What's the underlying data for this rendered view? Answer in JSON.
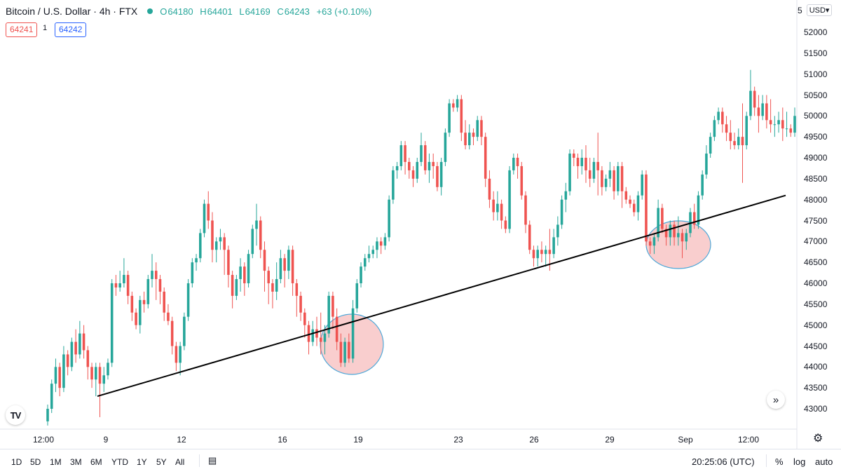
{
  "header": {
    "symbol": "Bitcoin / U.S. Dollar · 4h · FTX",
    "ohlc": {
      "o_label": "O",
      "o": "64180",
      "h_label": "H",
      "h": "64401",
      "l_label": "L",
      "l": "64169",
      "c_label": "C",
      "c": "64243",
      "change": "+63 (+0.10%)"
    },
    "sell_price": "64241",
    "qty": "1",
    "buy_price": "64242"
  },
  "price_scale": {
    "truncated_top": "5",
    "currency": "USD▾"
  },
  "colors": {
    "up": "#26a69a",
    "down": "#ef5350",
    "trendline": "#000000",
    "ellipse_fill": "#f8c9c9",
    "ellipse_stroke": "#4fa8d8",
    "sell_box": "#ef5350",
    "buy_box": "#2962ff"
  },
  "chart_data": {
    "type": "candlestick",
    "y_ticks": [
      43000,
      43500,
      44000,
      44500,
      45000,
      45500,
      46000,
      46500,
      47000,
      47500,
      48000,
      48500,
      49000,
      49500,
      50000,
      50500,
      51000,
      51500,
      52000
    ],
    "x_ticks": [
      "12:00",
      "9",
      "12",
      "16",
      "19",
      "23",
      "26",
      "29",
      "Sep",
      "12:00"
    ],
    "ylim": [
      42500,
      52600
    ],
    "candles": [
      [
        42700,
        43000,
        42600,
        43100
      ],
      [
        43000,
        43600,
        42900,
        43700
      ],
      [
        43600,
        44000,
        43400,
        44200
      ],
      [
        44000,
        43500,
        43300,
        44100
      ],
      [
        43500,
        44300,
        43400,
        44500
      ],
      [
        44300,
        44000,
        43800,
        44400
      ],
      [
        44000,
        44600,
        43900,
        44700
      ],
      [
        44600,
        44300,
        44100,
        44900
      ],
      [
        44300,
        44800,
        44200,
        45100
      ],
      [
        44800,
        44400,
        44200,
        45000
      ],
      [
        44400,
        44000,
        43700,
        44500
      ],
      [
        44000,
        43700,
        43500,
        44100
      ],
      [
        43700,
        44000,
        43300,
        44100
      ],
      [
        44000,
        43600,
        42800,
        44100
      ],
      [
        43600,
        43800,
        43400,
        44000
      ],
      [
        43800,
        44100,
        43700,
        44200
      ],
      [
        44100,
        46000,
        44000,
        46100
      ],
      [
        46000,
        45900,
        45700,
        46200
      ],
      [
        45900,
        46000,
        45800,
        46300
      ],
      [
        46000,
        46200,
        45900,
        46600
      ],
      [
        46200,
        45700,
        45500,
        46300
      ],
      [
        45700,
        45300,
        45100,
        45800
      ],
      [
        45300,
        45000,
        44900,
        45400
      ],
      [
        45000,
        45600,
        44800,
        45700
      ],
      [
        45600,
        45500,
        45300,
        45800
      ],
      [
        45500,
        46100,
        45400,
        46200
      ],
      [
        46100,
        46300,
        45900,
        46700
      ],
      [
        46300,
        46100,
        45600,
        46500
      ],
      [
        46100,
        45800,
        45500,
        46200
      ],
      [
        45800,
        45300,
        45100,
        45900
      ],
      [
        45300,
        45100,
        45000,
        45500
      ],
      [
        45100,
        44500,
        44300,
        45200
      ],
      [
        44500,
        44100,
        43900,
        44600
      ],
      [
        44100,
        44500,
        43800,
        44600
      ],
      [
        44500,
        45200,
        44400,
        45300
      ],
      [
        45200,
        46000,
        45100,
        46100
      ],
      [
        46000,
        46500,
        45900,
        46600
      ],
      [
        46500,
        46600,
        46300,
        46700
      ],
      [
        46600,
        47200,
        46500,
        47300
      ],
      [
        47200,
        47900,
        47100,
        48000
      ],
      [
        47900,
        47500,
        47300,
        48200
      ],
      [
        47500,
        46800,
        46500,
        47700
      ],
      [
        46800,
        47000,
        46500,
        47100
      ],
      [
        47000,
        47100,
        46800,
        47300
      ],
      [
        47100,
        46800,
        46200,
        47200
      ],
      [
        46800,
        46200,
        45900,
        46900
      ],
      [
        46200,
        45700,
        45400,
        46300
      ],
      [
        45700,
        46100,
        45600,
        46200
      ],
      [
        46100,
        46400,
        45800,
        46600
      ],
      [
        46400,
        46000,
        45700,
        46500
      ],
      [
        46000,
        46700,
        45900,
        46800
      ],
      [
        46700,
        47300,
        46600,
        47400
      ],
      [
        47300,
        47500,
        46900,
        47900
      ],
      [
        47500,
        46800,
        46600,
        47600
      ],
      [
        46800,
        46300,
        45800,
        47000
      ],
      [
        46300,
        46000,
        45500,
        46400
      ],
      [
        46000,
        45800,
        45400,
        46100
      ],
      [
        45800,
        46100,
        45600,
        46500
      ],
      [
        46100,
        46600,
        46000,
        46800
      ],
      [
        46600,
        46300,
        45900,
        46700
      ],
      [
        46300,
        46800,
        46100,
        46900
      ],
      [
        46800,
        46000,
        45700,
        46900
      ],
      [
        46000,
        45700,
        45200,
        46100
      ],
      [
        45700,
        45300,
        45100,
        45800
      ],
      [
        45300,
        45000,
        44700,
        45400
      ],
      [
        45000,
        44600,
        44300,
        45100
      ],
      [
        44600,
        44900,
        44500,
        45100
      ],
      [
        44900,
        44700,
        44500,
        45200
      ],
      [
        44700,
        44600,
        44300,
        45300
      ],
      [
        44600,
        44800,
        44300,
        45000
      ],
      [
        44800,
        45700,
        44700,
        45800
      ],
      [
        45700,
        45200,
        44900,
        45800
      ],
      [
        45200,
        44600,
        44400,
        45400
      ],
      [
        44600,
        44100,
        44000,
        44800
      ],
      [
        44100,
        44600,
        44000,
        44700
      ],
      [
        44600,
        44200,
        44100,
        44800
      ],
      [
        44200,
        45400,
        44100,
        45600
      ],
      [
        45400,
        46000,
        45300,
        46100
      ],
      [
        46000,
        46400,
        45900,
        46500
      ],
      [
        46400,
        46600,
        46300,
        46700
      ],
      [
        46600,
        46700,
        46500,
        46900
      ],
      [
        46700,
        46800,
        46600,
        46900
      ],
      [
        46800,
        47000,
        46600,
        47100
      ],
      [
        47000,
        46900,
        46700,
        47100
      ],
      [
        46900,
        47100,
        46800,
        47200
      ],
      [
        47100,
        48000,
        47000,
        48100
      ],
      [
        48000,
        48700,
        47900,
        48800
      ],
      [
        48700,
        48800,
        48500,
        48900
      ],
      [
        48800,
        49300,
        48700,
        49400
      ],
      [
        49300,
        48900,
        48600,
        49400
      ],
      [
        48900,
        48700,
        48500,
        49000
      ],
      [
        48700,
        48500,
        48300,
        48800
      ],
      [
        48500,
        48900,
        48400,
        49000
      ],
      [
        48900,
        49300,
        48800,
        49600
      ],
      [
        49300,
        48700,
        48600,
        49400
      ],
      [
        48700,
        48900,
        48400,
        49100
      ],
      [
        48900,
        48800,
        48500,
        49100
      ],
      [
        48800,
        48300,
        48200,
        48900
      ],
      [
        48300,
        48900,
        48100,
        49000
      ],
      [
        48900,
        49600,
        48800,
        49700
      ],
      [
        49600,
        50300,
        49500,
        50400
      ],
      [
        50300,
        50200,
        50100,
        50400
      ],
      [
        50200,
        50400,
        50100,
        50500
      ],
      [
        50400,
        49600,
        49400,
        50500
      ],
      [
        49600,
        49300,
        49200,
        49900
      ],
      [
        49300,
        49600,
        49200,
        49800
      ],
      [
        49600,
        49500,
        49300,
        49700
      ],
      [
        49500,
        49900,
        49400,
        50000
      ],
      [
        49900,
        49500,
        49300,
        50000
      ],
      [
        49500,
        48500,
        48300,
        49600
      ],
      [
        48500,
        48000,
        47800,
        48700
      ],
      [
        48000,
        47700,
        47500,
        48200
      ],
      [
        47700,
        47900,
        47500,
        48200
      ],
      [
        47900,
        47500,
        47300,
        48000
      ],
      [
        47500,
        47300,
        47200,
        47600
      ],
      [
        47300,
        48700,
        47200,
        48800
      ],
      [
        48700,
        49000,
        48600,
        49100
      ],
      [
        49000,
        48800,
        48500,
        49100
      ],
      [
        48800,
        48100,
        48000,
        48900
      ],
      [
        48100,
        47400,
        47200,
        48200
      ],
      [
        47400,
        46800,
        46700,
        47500
      ],
      [
        46800,
        46600,
        46400,
        46900
      ],
      [
        46600,
        46800,
        46400,
        46900
      ],
      [
        46800,
        46700,
        46500,
        47000
      ],
      [
        46700,
        46800,
        46400,
        46900
      ],
      [
        46800,
        46700,
        46300,
        47300
      ],
      [
        46700,
        47100,
        46600,
        47300
      ],
      [
        47100,
        47400,
        46900,
        47600
      ],
      [
        47400,
        48000,
        47300,
        48100
      ],
      [
        48000,
        48200,
        47700,
        48400
      ],
      [
        48200,
        49100,
        48100,
        49200
      ],
      [
        49100,
        49000,
        48800,
        49200
      ],
      [
        49000,
        48800,
        48500,
        49100
      ],
      [
        48800,
        49000,
        48600,
        49200
      ],
      [
        49000,
        48700,
        48400,
        49300
      ],
      [
        48700,
        48500,
        48300,
        49000
      ],
      [
        48500,
        48900,
        48400,
        49000
      ],
      [
        48900,
        48700,
        48100,
        49600
      ],
      [
        48700,
        48300,
        48100,
        48800
      ],
      [
        48300,
        48500,
        48200,
        48600
      ],
      [
        48500,
        48700,
        48300,
        48900
      ],
      [
        48700,
        48200,
        48000,
        48800
      ],
      [
        48200,
        48800,
        48100,
        48900
      ],
      [
        48800,
        48200,
        47800,
        48900
      ],
      [
        48200,
        48000,
        47900,
        48300
      ],
      [
        48000,
        47900,
        47800,
        48100
      ],
      [
        47900,
        47700,
        47600,
        48000
      ],
      [
        47700,
        48100,
        47500,
        48200
      ],
      [
        48100,
        48600,
        48000,
        48700
      ],
      [
        48600,
        47000,
        46900,
        48700
      ],
      [
        47000,
        46900,
        46700,
        47100
      ],
      [
        46900,
        47100,
        46700,
        47200
      ],
      [
        47100,
        47800,
        47000,
        48000
      ],
      [
        47800,
        47300,
        47200,
        47900
      ],
      [
        47300,
        47100,
        46900,
        47400
      ],
      [
        47100,
        47400,
        46900,
        47500
      ],
      [
        47400,
        47100,
        46900,
        47500
      ],
      [
        47100,
        47200,
        46900,
        47600
      ],
      [
        47200,
        47000,
        46600,
        47300
      ],
      [
        47000,
        47200,
        46800,
        47300
      ],
      [
        47200,
        47700,
        47100,
        47800
      ],
      [
        47700,
        47400,
        47300,
        47900
      ],
      [
        47400,
        48100,
        47300,
        48200
      ],
      [
        48100,
        48600,
        48000,
        48700
      ],
      [
        48600,
        49100,
        48500,
        49300
      ],
      [
        49100,
        49500,
        49000,
        49600
      ],
      [
        49500,
        49900,
        49400,
        50000
      ],
      [
        49900,
        50100,
        49800,
        50200
      ],
      [
        50100,
        49800,
        49600,
        50200
      ],
      [
        49800,
        49600,
        49400,
        50000
      ],
      [
        49600,
        49400,
        49200,
        49900
      ],
      [
        49400,
        49300,
        49200,
        49600
      ],
      [
        49300,
        49500,
        49200,
        49700
      ],
      [
        49500,
        49300,
        48400,
        50300
      ],
      [
        49300,
        50000,
        49200,
        50100
      ],
      [
        50000,
        50600,
        49900,
        51100
      ],
      [
        50600,
        50200,
        50000,
        50700
      ],
      [
        50200,
        50000,
        49600,
        50500
      ],
      [
        50000,
        50300,
        49900,
        50500
      ],
      [
        50300,
        49900,
        49700,
        50500
      ],
      [
        49900,
        49800,
        49600,
        50400
      ],
      [
        49800,
        49800,
        49500,
        50000
      ],
      [
        49800,
        49900,
        49600,
        50100
      ],
      [
        49900,
        49700,
        49400,
        50200
      ],
      [
        49700,
        49700,
        49500,
        50100
      ],
      [
        49700,
        49600,
        49500,
        49800
      ],
      [
        49600,
        50000,
        49500,
        50200
      ]
    ],
    "trendline": [
      [
        43300,
        48100
      ]
    ]
  }
}
